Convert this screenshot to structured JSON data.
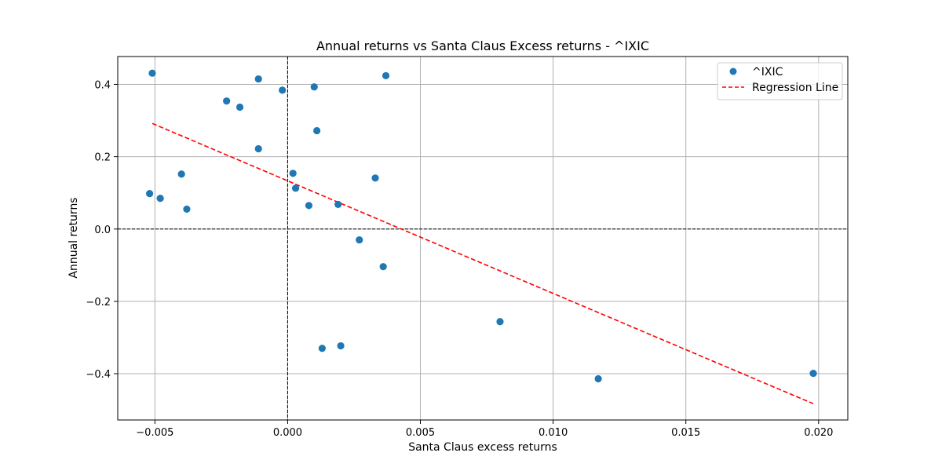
{
  "chart_data": {
    "type": "scatter",
    "title": "Annual returns vs Santa Claus Excess returns - ^IXIC",
    "xlabel": "Santa Claus excess returns",
    "ylabel": "Annual returns",
    "xlim": [
      -0.0064,
      0.0211
    ],
    "ylim": [
      -0.528,
      0.477
    ],
    "xticks": [
      -0.005,
      0.0,
      0.005,
      0.01,
      0.015,
      0.02
    ],
    "xtick_labels": [
      "−0.005",
      "0.000",
      "0.005",
      "0.010",
      "0.015",
      "0.020"
    ],
    "yticks": [
      -0.4,
      -0.2,
      0.0,
      0.2,
      0.4
    ],
    "ytick_labels": [
      "−0.4",
      "−0.2",
      "0.0",
      "0.2",
      "0.4"
    ],
    "grid": true,
    "legend_position": "top-right",
    "reference_lines": {
      "x": 0,
      "y": 0,
      "style": "dashed",
      "color": "#000000"
    },
    "series": [
      {
        "name": "^IXIC",
        "kind": "scatter",
        "color": "#1f77b4",
        "points": [
          [
            -0.0051,
            0.431
          ],
          [
            -0.0011,
            0.415
          ],
          [
            -0.0002,
            0.384
          ],
          [
            0.001,
            0.393
          ],
          [
            0.0037,
            0.424
          ],
          [
            -0.0023,
            0.354
          ],
          [
            -0.0018,
            0.337
          ],
          [
            0.0011,
            0.272
          ],
          [
            -0.0011,
            0.222
          ],
          [
            -0.004,
            0.152
          ],
          [
            0.0002,
            0.154
          ],
          [
            0.0003,
            0.113
          ],
          [
            0.0033,
            0.141
          ],
          [
            -0.0052,
            0.098
          ],
          [
            -0.0048,
            0.085
          ],
          [
            -0.0038,
            0.055
          ],
          [
            0.0008,
            0.065
          ],
          [
            0.0019,
            0.068
          ],
          [
            0.0027,
            -0.03
          ],
          [
            0.0036,
            -0.104
          ],
          [
            0.008,
            -0.256
          ],
          [
            0.0013,
            -0.33
          ],
          [
            0.002,
            -0.323
          ],
          [
            0.0117,
            -0.414
          ],
          [
            0.0198,
            -0.399
          ]
        ]
      },
      {
        "name": "Regression Line",
        "kind": "line",
        "color": "#ff0000",
        "style": "dashed",
        "points": [
          [
            -0.0051,
            0.292
          ],
          [
            0.0198,
            -0.483
          ]
        ]
      }
    ]
  }
}
